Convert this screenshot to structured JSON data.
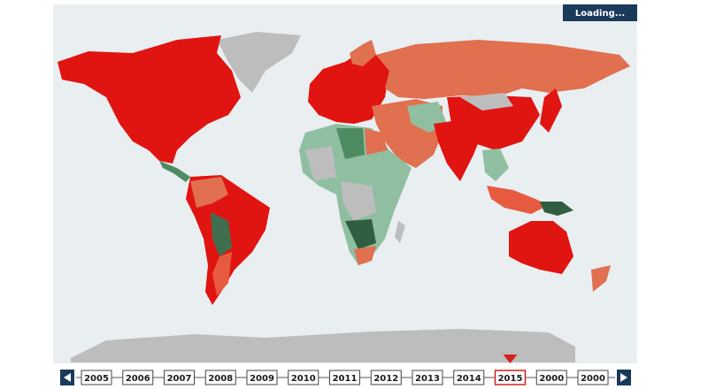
{
  "loading_label": "Loading...",
  "timeline": {
    "years": [
      "2005",
      "2006",
      "2007",
      "2008",
      "2009",
      "2010",
      "2011",
      "2012",
      "2013",
      "2014",
      "2015",
      "2000",
      "2000"
    ],
    "selected": 10
  }
}
